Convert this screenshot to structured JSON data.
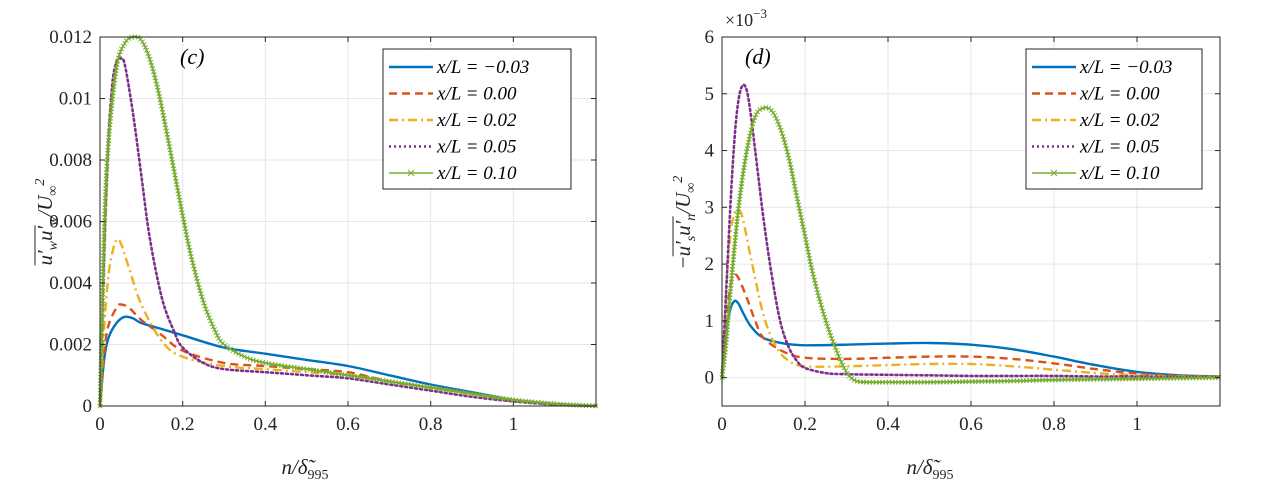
{
  "chart_data": [
    {
      "type": "line",
      "panel_label": "(c)",
      "xlabel": "n/δ̃995",
      "ylabel": "u′w u′w / U∞²",
      "xlim": [
        0,
        1.2
      ],
      "ylim": [
        0,
        0.012
      ],
      "xticks": [
        0,
        0.2,
        0.4,
        0.6,
        0.8,
        1
      ],
      "xtick_labels": [
        "0",
        "0.2",
        "0.4",
        "0.6",
        "0.8",
        "1"
      ],
      "yticks": [
        0,
        0.002,
        0.004,
        0.006,
        0.008,
        0.01,
        0.012
      ],
      "ytick_labels": [
        "0",
        "0.002",
        "0.004",
        "0.006",
        "0.008",
        "0.01",
        "0.012"
      ],
      "grid": true,
      "legend_position": "top-right",
      "series": [
        {
          "name": "x/L = −0.03",
          "color": "#0072BD",
          "style": "solid",
          "x": [
            0,
            0.01,
            0.02,
            0.04,
            0.06,
            0.08,
            0.1,
            0.15,
            0.2,
            0.3,
            0.4,
            0.5,
            0.6,
            0.7,
            0.8,
            0.9,
            1.0,
            1.1,
            1.2
          ],
          "y": [
            0,
            0.0015,
            0.0022,
            0.0027,
            0.0029,
            0.00285,
            0.0027,
            0.0025,
            0.0023,
            0.0019,
            0.0017,
            0.0015,
            0.0013,
            0.001,
            0.0007,
            0.00045,
            0.0002,
            7e-05,
            0
          ]
        },
        {
          "name": "x/L = 0.00",
          "color": "#D95319",
          "style": "dashed",
          "x": [
            0,
            0.01,
            0.02,
            0.04,
            0.05,
            0.07,
            0.1,
            0.15,
            0.2,
            0.3,
            0.4,
            0.5,
            0.6,
            0.7,
            0.8,
            0.9,
            1.0,
            1.1,
            1.2
          ],
          "y": [
            0,
            0.0017,
            0.0026,
            0.0032,
            0.0033,
            0.0032,
            0.0028,
            0.0023,
            0.0018,
            0.0014,
            0.0013,
            0.0012,
            0.0011,
            0.0008,
            0.0006,
            0.0004,
            0.0002,
            6e-05,
            0
          ]
        },
        {
          "name": "x/L = 0.02",
          "color": "#EDB120",
          "style": "dashdot",
          "x": [
            0,
            0.01,
            0.02,
            0.03,
            0.04,
            0.05,
            0.07,
            0.1,
            0.15,
            0.2,
            0.3,
            0.4,
            0.5,
            0.6,
            0.7,
            0.8,
            0.9,
            1.0,
            1.1,
            1.2
          ],
          "y": [
            0,
            0.0025,
            0.0042,
            0.005,
            0.0054,
            0.0053,
            0.0045,
            0.0033,
            0.0021,
            0.0016,
            0.0013,
            0.0012,
            0.0011,
            0.001,
            0.0008,
            0.0006,
            0.0004,
            0.0002,
            6e-05,
            0
          ]
        },
        {
          "name": "x/L = 0.05",
          "color": "#7E2F8E",
          "style": "dotted",
          "x": [
            0,
            0.01,
            0.02,
            0.03,
            0.04,
            0.05,
            0.06,
            0.08,
            0.1,
            0.12,
            0.15,
            0.18,
            0.2,
            0.25,
            0.3,
            0.4,
            0.5,
            0.6,
            0.7,
            0.8,
            0.9,
            1.0,
            1.1,
            1.2
          ],
          "y": [
            0,
            0.005,
            0.0085,
            0.0105,
            0.0112,
            0.0113,
            0.0111,
            0.0095,
            0.0075,
            0.0055,
            0.0035,
            0.0024,
            0.0019,
            0.0014,
            0.0012,
            0.0011,
            0.001,
            0.0009,
            0.0007,
            0.0005,
            0.0003,
            0.00015,
            5e-05,
            0
          ]
        },
        {
          "name": "x/L = 0.10",
          "color": "#77AC30",
          "style": "solid-x",
          "x": [
            0,
            0.01,
            0.02,
            0.04,
            0.06,
            0.08,
            0.1,
            0.12,
            0.14,
            0.16,
            0.18,
            0.2,
            0.22,
            0.25,
            0.28,
            0.3,
            0.35,
            0.4,
            0.5,
            0.6,
            0.7,
            0.8,
            0.9,
            1.0,
            1.1,
            1.2
          ],
          "y": [
            0,
            0.0055,
            0.0085,
            0.011,
            0.0118,
            0.012,
            0.0119,
            0.0113,
            0.0103,
            0.009,
            0.0076,
            0.0062,
            0.0049,
            0.0034,
            0.0024,
            0.002,
            0.0016,
            0.0014,
            0.0012,
            0.001,
            0.0008,
            0.0006,
            0.0004,
            0.0002,
            7e-05,
            0
          ]
        }
      ]
    },
    {
      "type": "line",
      "panel_label": "(d)",
      "xlabel": "n/δ̃995",
      "ylabel": "−u′s u′n / U∞²",
      "multiplier": "×10−3",
      "multiplier_base": "×10",
      "multiplier_exp": "−3",
      "xlim": [
        0,
        1.2
      ],
      "ylim": [
        -0.5,
        6
      ],
      "xticks": [
        0,
        0.2,
        0.4,
        0.6,
        0.8,
        1
      ],
      "xtick_labels": [
        "0",
        "0.2",
        "0.4",
        "0.6",
        "0.8",
        "1"
      ],
      "yticks": [
        0,
        1,
        2,
        3,
        4,
        5,
        6
      ],
      "ytick_labels": [
        "0",
        "1",
        "2",
        "3",
        "4",
        "5",
        "6"
      ],
      "grid": true,
      "legend_position": "top-right",
      "series": [
        {
          "name": "x/L = −0.03",
          "color": "#0072BD",
          "style": "solid",
          "x": [
            0,
            0.01,
            0.02,
            0.03,
            0.04,
            0.05,
            0.07,
            0.1,
            0.15,
            0.2,
            0.3,
            0.4,
            0.5,
            0.6,
            0.7,
            0.8,
            0.9,
            1.0,
            1.1,
            1.2
          ],
          "y": [
            0,
            0.8,
            1.2,
            1.35,
            1.3,
            1.15,
            0.9,
            0.7,
            0.6,
            0.57,
            0.58,
            0.6,
            0.61,
            0.58,
            0.5,
            0.37,
            0.22,
            0.1,
            0.04,
            0.02
          ]
        },
        {
          "name": "x/L = 0.00",
          "color": "#D95319",
          "style": "dashed",
          "x": [
            0,
            0.01,
            0.02,
            0.03,
            0.04,
            0.06,
            0.08,
            0.1,
            0.15,
            0.2,
            0.3,
            0.4,
            0.5,
            0.6,
            0.7,
            0.8,
            0.9,
            1.0,
            1.1,
            1.2
          ],
          "y": [
            0,
            1.0,
            1.6,
            1.8,
            1.75,
            1.4,
            1.0,
            0.7,
            0.45,
            0.35,
            0.33,
            0.35,
            0.37,
            0.37,
            0.33,
            0.25,
            0.15,
            0.07,
            0.03,
            0.02
          ]
        },
        {
          "name": "x/L = 0.02",
          "color": "#EDB120",
          "style": "dashdot",
          "x": [
            0,
            0.01,
            0.02,
            0.03,
            0.04,
            0.05,
            0.07,
            0.1,
            0.13,
            0.16,
            0.2,
            0.3,
            0.4,
            0.5,
            0.6,
            0.7,
            0.8,
            0.9,
            1.0,
            1.1,
            1.2
          ],
          "y": [
            0,
            1.5,
            2.5,
            2.9,
            2.95,
            2.8,
            2.1,
            1.1,
            0.55,
            0.3,
            0.2,
            0.2,
            0.22,
            0.24,
            0.24,
            0.2,
            0.14,
            0.08,
            0.04,
            0.02,
            0.01
          ]
        },
        {
          "name": "x/L = 0.05",
          "color": "#7E2F8E",
          "style": "dotted",
          "x": [
            0,
            0.01,
            0.02,
            0.03,
            0.04,
            0.05,
            0.06,
            0.07,
            0.08,
            0.1,
            0.12,
            0.14,
            0.16,
            0.18,
            0.2,
            0.25,
            0.3,
            0.4,
            0.5,
            0.6,
            0.7,
            0.8,
            0.9,
            1.0,
            1.1,
            1.2
          ],
          "y": [
            0,
            1.5,
            3.0,
            4.2,
            4.9,
            5.15,
            5.05,
            4.6,
            4.0,
            2.8,
            1.8,
            1.0,
            0.55,
            0.3,
            0.17,
            0.08,
            0.06,
            0.05,
            0.04,
            0.03,
            0.03,
            0.03,
            0.02,
            0.02,
            0.01,
            0.01
          ]
        },
        {
          "name": "x/L = 0.10",
          "color": "#77AC30",
          "style": "solid-x",
          "x": [
            0,
            0.01,
            0.02,
            0.04,
            0.06,
            0.08,
            0.1,
            0.12,
            0.14,
            0.16,
            0.18,
            0.2,
            0.22,
            0.25,
            0.28,
            0.3,
            0.32,
            0.35,
            0.4,
            0.5,
            0.6,
            0.7,
            0.8,
            0.9,
            1.0,
            1.1,
            1.2
          ],
          "y": [
            0,
            0.6,
            1.5,
            3.0,
            4.0,
            4.6,
            4.75,
            4.7,
            4.4,
            3.9,
            3.2,
            2.5,
            1.8,
            1.0,
            0.4,
            0.1,
            -0.05,
            -0.08,
            -0.08,
            -0.08,
            -0.07,
            -0.06,
            -0.04,
            -0.03,
            -0.02,
            -0.01,
            0
          ]
        }
      ]
    }
  ]
}
